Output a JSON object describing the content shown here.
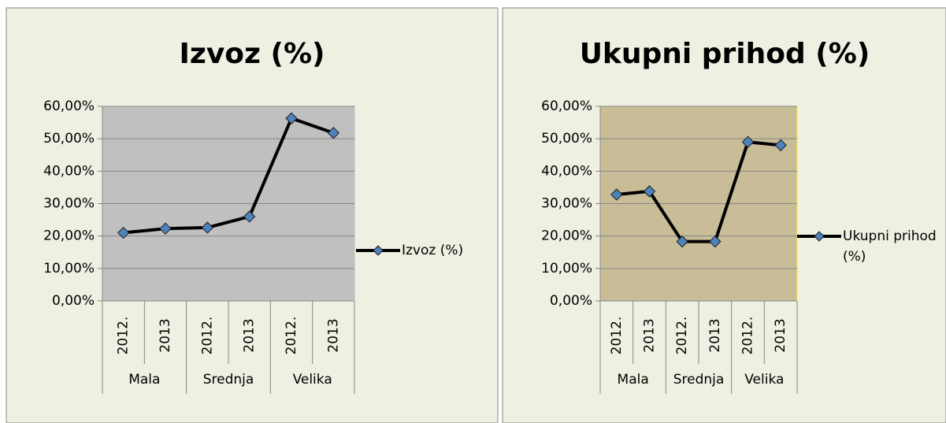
{
  "chart_data": [
    {
      "type": "line",
      "title": "Izvoz (%)",
      "categories": [
        "2012.",
        "2013",
        "2012.",
        "2013",
        "2012.",
        "2013"
      ],
      "category_groups": [
        "Mala",
        "Srednja",
        "Velika"
      ],
      "series": [
        {
          "name": "Izvoz (%)",
          "color": "#000000",
          "marker_color": "#4f81bd",
          "values": [
            21,
            22.3,
            22.6,
            26,
            56.3,
            51.8
          ]
        }
      ],
      "ylim": [
        0,
        60
      ],
      "yticks": [
        {
          "value": 0,
          "label": "0,00%"
        },
        {
          "value": 10,
          "label": "10,00%"
        },
        {
          "value": 20,
          "label": "20,00%"
        },
        {
          "value": 30,
          "label": "30,00%"
        },
        {
          "value": 40,
          "label": "40,00%"
        },
        {
          "value": 50,
          "label": "50,00%"
        },
        {
          "value": 60,
          "label": "60,00%"
        }
      ],
      "grid": true,
      "legend": "right",
      "plot_color": "#c0c0c0"
    },
    {
      "type": "line",
      "title": "Ukupni prihod (%)",
      "categories": [
        "2012.",
        "2013",
        "2012.",
        "2013",
        "2012.",
        "2013"
      ],
      "category_groups": [
        "Mala",
        "Srednja",
        "Velika"
      ],
      "series": [
        {
          "name": "Ukupni prihod (%)",
          "color": "#000000",
          "marker_color": "#4f81bd",
          "values": [
            32.8,
            33.8,
            18.3,
            18.3,
            49,
            48
          ]
        }
      ],
      "ylim": [
        0,
        60
      ],
      "yticks": [
        {
          "value": 0,
          "label": "0,00%"
        },
        {
          "value": 10,
          "label": "10,00%"
        },
        {
          "value": 20,
          "label": "20,00%"
        },
        {
          "value": 30,
          "label": "30,00%"
        },
        {
          "value": 40,
          "label": "40,00%"
        },
        {
          "value": 50,
          "label": "50,00%"
        },
        {
          "value": 60,
          "label": "60,00%"
        }
      ],
      "grid": true,
      "legend": "right",
      "plot_color": "#c8bd97"
    }
  ]
}
